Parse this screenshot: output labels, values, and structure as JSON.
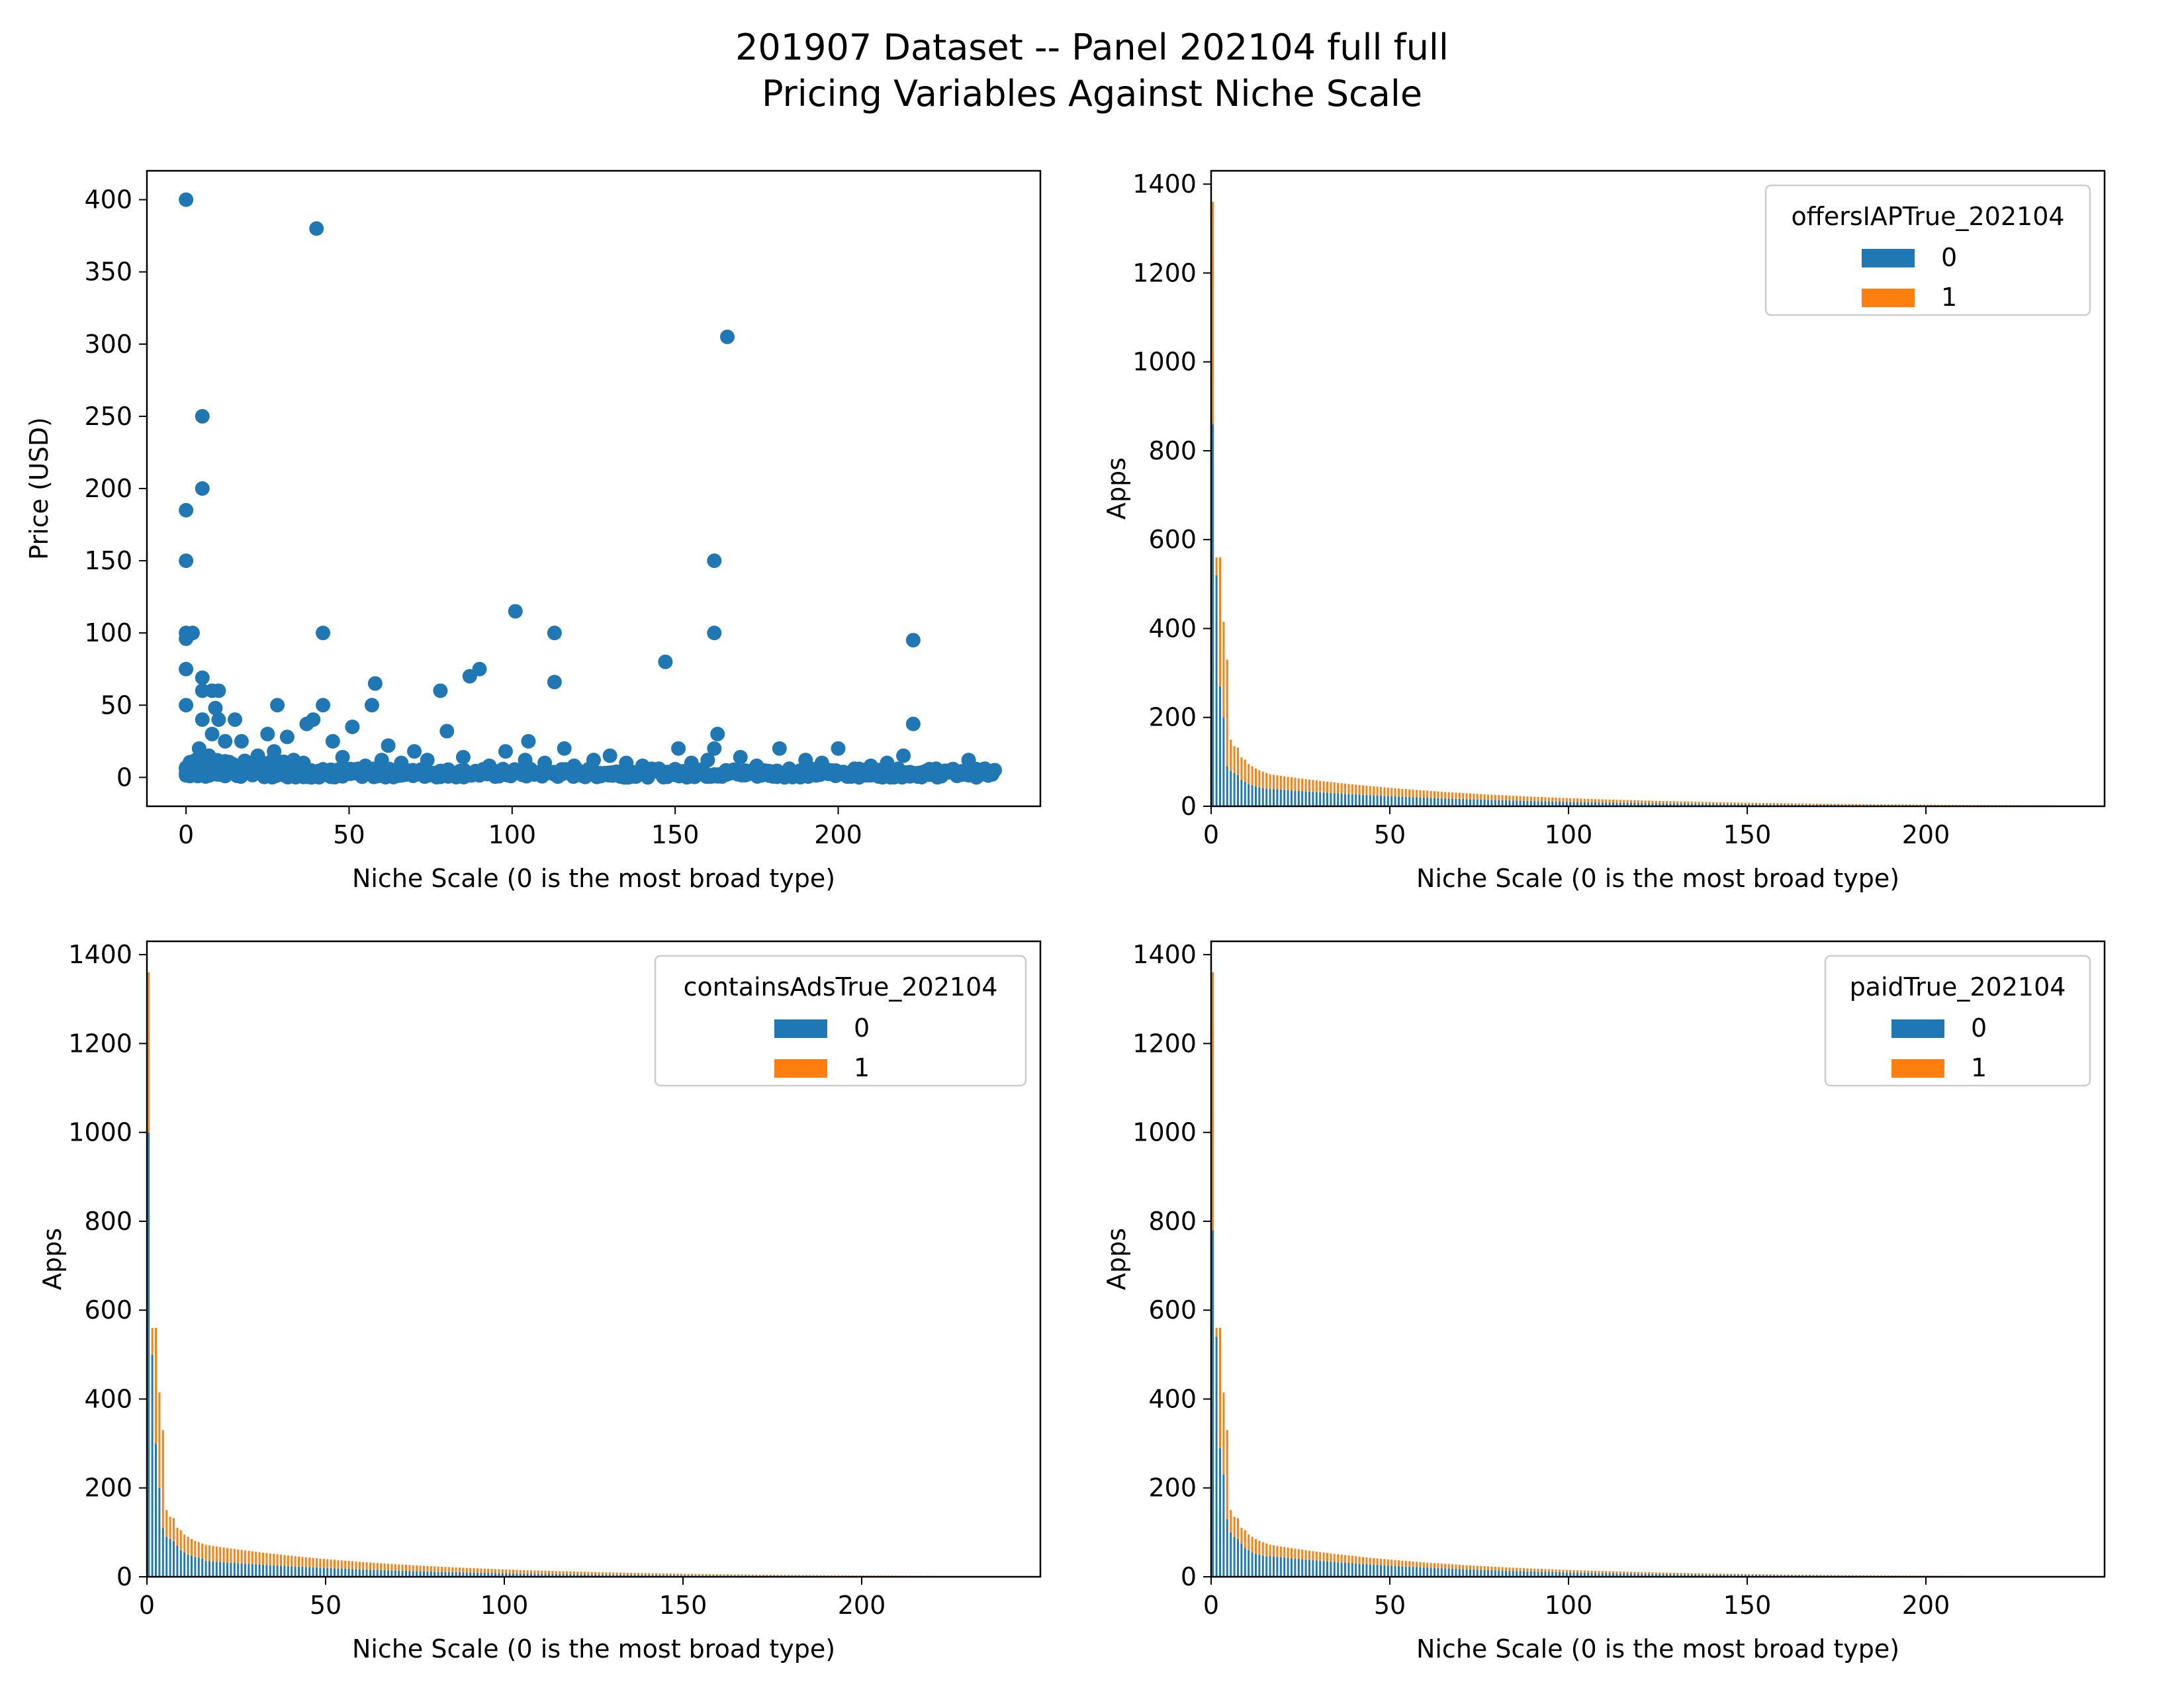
{
  "figure": {
    "title_line1": "201907 Dataset -- Panel 202104 full full",
    "title_line2": "Pricing Variables Against Niche Scale"
  },
  "colors": {
    "series0": "#1f77b4",
    "series1": "#ff7f0e",
    "axis": "#000000"
  },
  "chart_data": [
    {
      "type": "scatter",
      "title": "",
      "xlabel": "Niche Scale (0 is the most broad type)",
      "ylabel": "Price (USD)",
      "xlim": [
        -12,
        262
      ],
      "ylim": [
        -20,
        420
      ],
      "xticks": [
        0,
        50,
        100,
        150,
        200
      ],
      "yticks": [
        0,
        50,
        100,
        150,
        200,
        250,
        300,
        350,
        400
      ],
      "points": [
        [
          0,
          400
        ],
        [
          40,
          380
        ],
        [
          166,
          305
        ],
        [
          5,
          250
        ],
        [
          5,
          200
        ],
        [
          0,
          185
        ],
        [
          0,
          150
        ],
        [
          162,
          150
        ],
        [
          101,
          115
        ],
        [
          0,
          100
        ],
        [
          2,
          100
        ],
        [
          42,
          100
        ],
        [
          113,
          100
        ],
        [
          162,
          100
        ],
        [
          0,
          96
        ],
        [
          223,
          95
        ],
        [
          147,
          80
        ],
        [
          0,
          75
        ],
        [
          90,
          75
        ],
        [
          87,
          70
        ],
        [
          5,
          69
        ],
        [
          113,
          66
        ],
        [
          58,
          65
        ],
        [
          78,
          60
        ],
        [
          5,
          60
        ],
        [
          8,
          60
        ],
        [
          10,
          60
        ],
        [
          0,
          50
        ],
        [
          28,
          50
        ],
        [
          42,
          50
        ],
        [
          57,
          50
        ],
        [
          9,
          48
        ],
        [
          5,
          40
        ],
        [
          10,
          40
        ],
        [
          15,
          40
        ],
        [
          37,
          37
        ],
        [
          39,
          40
        ],
        [
          51,
          35
        ],
        [
          223,
          37
        ],
        [
          80,
          32
        ],
        [
          163,
          30
        ],
        [
          8,
          30
        ],
        [
          25,
          30
        ],
        [
          31,
          28
        ],
        [
          45,
          25
        ],
        [
          105,
          25
        ],
        [
          4,
          20
        ],
        [
          12,
          25
        ],
        [
          17,
          25
        ],
        [
          162,
          20
        ],
        [
          182,
          20
        ],
        [
          200,
          20
        ],
        [
          151,
          20
        ],
        [
          116,
          20
        ],
        [
          62,
          22
        ],
        [
          70,
          18
        ],
        [
          98,
          18
        ],
        [
          130,
          15
        ],
        [
          220,
          15
        ],
        [
          240,
          12
        ],
        [
          190,
          12
        ],
        [
          170,
          14
        ],
        [
          135,
          10
        ],
        [
          245,
          6
        ],
        [
          248,
          5
        ],
        [
          60,
          12
        ],
        [
          85,
          14
        ],
        [
          110,
          10
        ],
        [
          125,
          12
        ],
        [
          140,
          8
        ],
        [
          155,
          10
        ],
        [
          175,
          8
        ],
        [
          195,
          10
        ],
        [
          210,
          8
        ],
        [
          230,
          6
        ],
        [
          22,
          15
        ],
        [
          33,
          12
        ],
        [
          48,
          14
        ],
        [
          66,
          10
        ],
        [
          74,
          12
        ],
        [
          93,
          8
        ],
        [
          104,
          12
        ],
        [
          119,
          8
        ],
        [
          145,
          6
        ],
        [
          160,
          12
        ],
        [
          185,
          6
        ],
        [
          205,
          6
        ],
        [
          215,
          10
        ],
        [
          236,
          4
        ],
        [
          3,
          12
        ],
        [
          7,
          15
        ],
        [
          13,
          10
        ],
        [
          19,
          8
        ],
        [
          27,
          18
        ],
        [
          36,
          10
        ],
        [
          55,
          8
        ]
      ]
    },
    {
      "type": "bar",
      "stacked": true,
      "title": "",
      "xlabel": "Niche Scale (0 is the most broad type)",
      "ylabel": "Apps",
      "legend_title": "offersIAPTrue_202104",
      "legend_position": "top-right",
      "legend_entries": [
        "0",
        "1"
      ],
      "xlim": [
        0,
        250
      ],
      "ylim": [
        0,
        1430
      ],
      "xticks": [
        0,
        50,
        100,
        150,
        200
      ],
      "yticks": [
        0,
        200,
        400,
        600,
        800,
        1000,
        1200,
        1400
      ],
      "series": [
        {
          "name": "0",
          "values_head": [
            860,
            520,
            270,
            200,
            90,
            80,
            75,
            70,
            60,
            55,
            50,
            48,
            45,
            43,
            41,
            40
          ],
          "tail_share": 0.55
        },
        {
          "name": "1",
          "values_head": [
            500,
            40,
            290,
            215,
            240,
            70,
            60,
            62,
            50,
            50,
            45,
            42,
            40,
            38,
            37,
            35
          ],
          "tail_share": 0.45
        }
      ],
      "totals_head": [
        1360,
        560,
        560,
        415,
        330,
        150,
        135,
        132,
        110,
        105,
        95,
        90,
        85,
        81,
        78,
        75
      ],
      "totals_tail": {
        "start": 16,
        "end": 235,
        "start_value": 72,
        "end_value": 2
      }
    },
    {
      "type": "bar",
      "stacked": true,
      "title": "",
      "xlabel": "Niche Scale (0 is the most broad type)",
      "ylabel": "Apps",
      "legend_title": "containsAdsTrue_202104",
      "legend_position": "top-right",
      "legend_entries": [
        "0",
        "1"
      ],
      "xlim": [
        0,
        250
      ],
      "ylim": [
        0,
        1430
      ],
      "xticks": [
        0,
        50,
        100,
        150,
        200
      ],
      "yticks": [
        0,
        200,
        400,
        600,
        800,
        1000,
        1200,
        1400
      ],
      "series": [
        {
          "name": "0",
          "values_head": [
            1000,
            500,
            300,
            200,
            110,
            90,
            85,
            80,
            70,
            60,
            55,
            50,
            48,
            45,
            43,
            41
          ],
          "tail_share": 0.5
        },
        {
          "name": "1",
          "values_head": [
            360,
            60,
            260,
            215,
            220,
            60,
            50,
            52,
            40,
            45,
            40,
            40,
            37,
            36,
            35,
            34
          ],
          "tail_share": 0.5
        }
      ],
      "totals_head": [
        1360,
        560,
        560,
        415,
        330,
        150,
        135,
        132,
        110,
        105,
        95,
        90,
        85,
        81,
        78,
        75
      ],
      "totals_tail": {
        "start": 16,
        "end": 220,
        "start_value": 72,
        "end_value": 2
      }
    },
    {
      "type": "bar",
      "stacked": true,
      "title": "",
      "xlabel": "Niche Scale (0 is the most broad type)",
      "ylabel": "Apps",
      "legend_title": "paidTrue_202104",
      "legend_position": "top-right",
      "legend_entries": [
        "0",
        "1"
      ],
      "xlim": [
        0,
        250
      ],
      "ylim": [
        0,
        1430
      ],
      "xticks": [
        0,
        50,
        100,
        150,
        200
      ],
      "yticks": [
        0,
        200,
        400,
        600,
        800,
        1000,
        1200,
        1400
      ],
      "series": [
        {
          "name": "0",
          "values_head": [
            780,
            540,
            290,
            230,
            130,
            100,
            90,
            85,
            75,
            65,
            60,
            55,
            52,
            50,
            48,
            46
          ],
          "tail_share": 0.65
        },
        {
          "name": "1",
          "values_head": [
            580,
            20,
            270,
            185,
            200,
            50,
            45,
            47,
            35,
            40,
            35,
            35,
            33,
            31,
            30,
            29
          ],
          "tail_share": 0.35
        }
      ],
      "totals_head": [
        1360,
        560,
        560,
        415,
        330,
        150,
        135,
        132,
        110,
        105,
        95,
        90,
        85,
        81,
        78,
        75
      ],
      "totals_tail": {
        "start": 16,
        "end": 210,
        "start_value": 72,
        "end_value": 2
      }
    }
  ]
}
